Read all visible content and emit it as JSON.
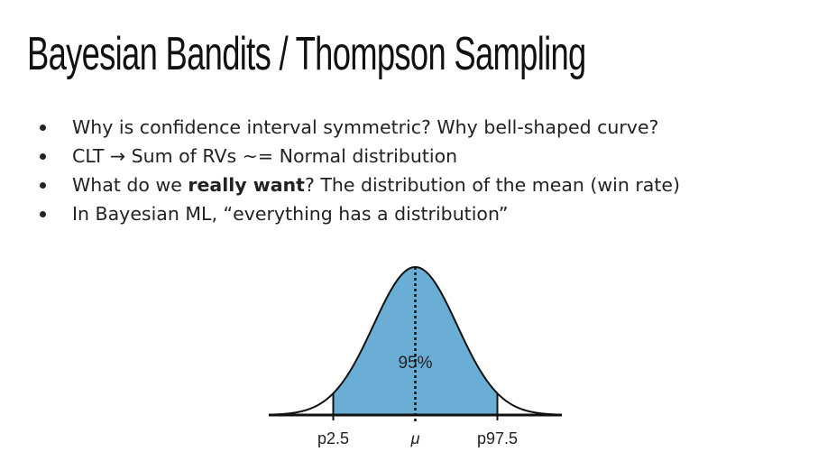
{
  "slide": {
    "title": "Bayesian Bandits / Thompson Sampling"
  },
  "bullets": [
    {
      "text": "Why is confidence interval symmetric? Why bell-shaped curve?"
    },
    {
      "text": "CLT → Sum of RVs ~= Normal distribution"
    },
    {
      "before": "What do we ",
      "bold": "really want",
      "after": "? The distribution of the mean (win rate)"
    },
    {
      "text": "In Bayesian ML, “everything has a distribution”"
    }
  ],
  "chart_data": {
    "type": "area",
    "distribution": "normal",
    "mean": 0,
    "sd": 1,
    "xlim": [
      -3.5,
      3.5
    ],
    "shaded_interval": [
      -1.96,
      1.96
    ],
    "shaded_label": "95%",
    "tick_labels": [
      {
        "x": -1.96,
        "label": "p2.5"
      },
      {
        "x": 0,
        "label": "μ"
      },
      {
        "x": 1.96,
        "label": "p97.5"
      }
    ],
    "fill_color": "#6aaed6",
    "line_color": "#111111"
  }
}
